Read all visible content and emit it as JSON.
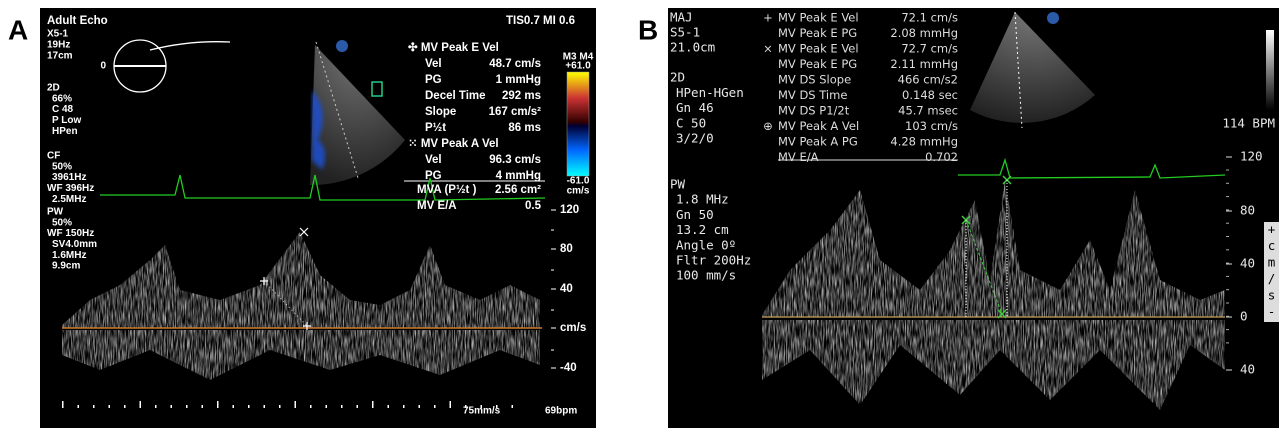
{
  "panel_a": {
    "label": "A",
    "title": "Adult Echo",
    "probe": "X5-1",
    "frame_rate": "19Hz",
    "depth": "17cm",
    "indices": "TIS0.7  MI 0.6",
    "circle_label": "0",
    "mode_2d": [
      "2D",
      "66%",
      "C 48",
      "P Low",
      "HPen"
    ],
    "mode_cf": [
      "CF",
      "50%",
      "3961Hz",
      "WF 396Hz",
      "2.5MHz"
    ],
    "mode_pw": [
      "PW",
      "50%",
      "WF 150Hz",
      "SV4.0mm",
      "1.6MHz",
      "9.9cm"
    ],
    "color_bar": [
      "M3 M4",
      "+61.0",
      "-61.0",
      "cm/s"
    ],
    "measurements": [
      {
        "heading": "✣ MV Peak E Vel",
        "rows": [
          [
            "Vel",
            "48.7 cm/s"
          ],
          [
            "PG",
            "1 mmHg"
          ],
          [
            "Decel Time",
            "292 ms"
          ],
          [
            "Slope",
            "167 cm/s²"
          ],
          [
            "P½t",
            "86 ms"
          ]
        ]
      },
      {
        "heading": "⁙ MV Peak A Vel",
        "rows": [
          [
            "Vel",
            "96.3 cm/s"
          ],
          [
            "PG",
            "4 mmHg"
          ]
        ]
      }
    ],
    "summary": [
      [
        "MVA (P½t )",
        "2.56 cm²"
      ],
      [
        "MV E/A",
        "0.5"
      ]
    ],
    "scale": [
      "120",
      "80",
      "40",
      "cm/s",
      "-40"
    ],
    "sweep": "75mm/s",
    "heart_rate": "69bpm"
  },
  "panel_b": {
    "label": "B",
    "header": [
      "MAJ",
      "S5-1",
      "21.0cm"
    ],
    "mode_2d": [
      "2D",
      "HPen-HGen",
      "Gn 46",
      "C 50",
      "3/2/0"
    ],
    "mode_pw": [
      "PW",
      "1.8 MHz",
      "Gn 50",
      "13.2 cm",
      "Angle 0º",
      "Fltr 200Hz",
      "100 mm/s"
    ],
    "measurements": [
      {
        "marker": "+",
        "name": "MV Peak E Vel",
        "value": "72.1 cm/s"
      },
      {
        "name": "MV Peak E PG",
        "value": "2.08 mmHg"
      },
      {
        "marker": "×",
        "name": "MV Peak E Vel",
        "value": "72.7 cm/s"
      },
      {
        "name": "MV Peak E PG",
        "value": "2.11 mmHg"
      },
      {
        "name": "MV DS Slope",
        "value": "466 cm/s2"
      },
      {
        "name": "MV DS Time",
        "value": "0.148 sec"
      },
      {
        "name": "MV DS P1/2t",
        "value": "45.7 msec"
      },
      {
        "marker": "⊕",
        "name": "MV Peak A Vel",
        "value": "103 cm/s"
      },
      {
        "name": "MV Peak A PG",
        "value": "4.28 mmHg"
      },
      {
        "name": "MV E/A",
        "value": "0.702"
      }
    ],
    "heart_rate": "114 BPM",
    "scale": [
      "120",
      "80",
      "40",
      "0",
      "40"
    ],
    "scale_unit": [
      "+",
      "c",
      "m",
      "/",
      "s",
      "-"
    ]
  }
}
